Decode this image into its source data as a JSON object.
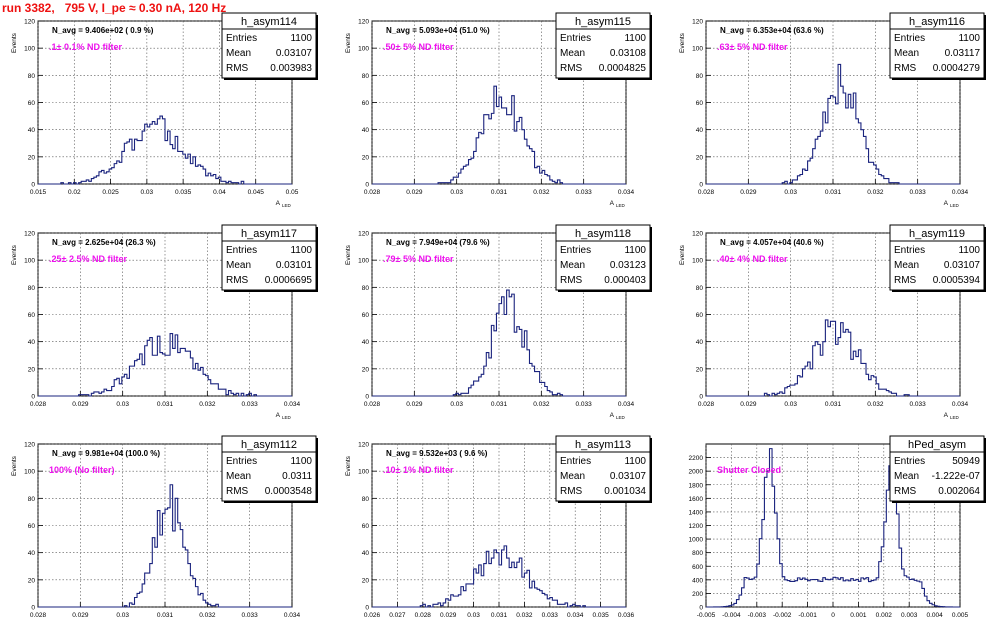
{
  "page": {
    "title": "run 3382,   795 V, I_pe ≈ 0.30 nA, 120 Hz"
  },
  "colors": {
    "title": "#ee1111",
    "annotation": "#ee11ee",
    "histogram": "#1a237e"
  },
  "stats_labels": {
    "entries": "Entries",
    "mean": "Mean",
    "rms": "RMS"
  },
  "chart_data": [
    {
      "type": "histogram",
      "name": "h_asym114",
      "title": "N_avg = 9.406e+02 ( 0.9 %)",
      "annotation": ".1± 0.1% ND filter",
      "xlabel": "A",
      "xsub": "LED",
      "ylabel": "Events",
      "xlim": [
        0.015,
        0.05
      ],
      "ylim": [
        0,
        120
      ],
      "xticks": [
        0.015,
        0.02,
        0.025,
        0.03,
        0.035,
        0.04,
        0.045,
        0.05
      ],
      "yticks": [
        0,
        20,
        40,
        60,
        80,
        100,
        120
      ],
      "grid": true,
      "stats": {
        "entries": "1100",
        "mean": "0.03107",
        "rms": "0.003983"
      },
      "dist": {
        "mu": 0.03107,
        "sigma": 0.003983,
        "peak": 50
      }
    },
    {
      "type": "histogram",
      "name": "h_asym115",
      "title": "N_avg = 5.093e+04 (51.0 %)",
      "annotation": ".50± 5% ND filter",
      "xlabel": "A",
      "xsub": "LED",
      "ylabel": "Events",
      "xlim": [
        0.028,
        0.034
      ],
      "ylim": [
        0,
        120
      ],
      "xticks": [
        0.028,
        0.029,
        0.03,
        0.031,
        0.032,
        0.033,
        0.034
      ],
      "yticks": [
        0,
        20,
        40,
        60,
        80,
        100,
        120
      ],
      "grid": true,
      "stats": {
        "entries": "1100",
        "mean": "0.03108",
        "rms": "0.0004825"
      },
      "dist": {
        "mu": 0.03108,
        "sigma": 0.0004825,
        "peak": 72
      }
    },
    {
      "type": "histogram",
      "name": "h_asym116",
      "title": "N_avg = 6.353e+04 (63.6 %)",
      "annotation": ".63± 5% ND filter",
      "xlabel": "A",
      "xsub": "LED",
      "ylabel": "Events",
      "xlim": [
        0.028,
        0.034
      ],
      "ylim": [
        0,
        120
      ],
      "xticks": [
        0.028,
        0.029,
        0.03,
        0.031,
        0.032,
        0.033,
        0.034
      ],
      "yticks": [
        0,
        20,
        40,
        60,
        80,
        100,
        120
      ],
      "grid": true,
      "stats": {
        "entries": "1100",
        "mean": "0.03117",
        "rms": "0.0004279"
      },
      "dist": {
        "mu": 0.03117,
        "sigma": 0.0004279,
        "peak": 88
      }
    },
    {
      "type": "histogram",
      "name": "h_asym117",
      "title": "N_avg = 2.625e+04 (26.3 %)",
      "annotation": ".25± 2.5% ND filter",
      "xlabel": "A",
      "xsub": "LED",
      "ylabel": "Events",
      "xlim": [
        0.028,
        0.034
      ],
      "ylim": [
        0,
        120
      ],
      "xticks": [
        0.028,
        0.029,
        0.03,
        0.031,
        0.032,
        0.033,
        0.034
      ],
      "yticks": [
        0,
        20,
        40,
        60,
        80,
        100,
        120
      ],
      "grid": true,
      "stats": {
        "entries": "1100",
        "mean": "0.03101",
        "rms": "0.0006695"
      },
      "dist": {
        "mu": 0.03101,
        "sigma": 0.0006695,
        "peak": 46
      }
    },
    {
      "type": "histogram",
      "name": "h_asym118",
      "title": "N_avg = 7.949e+04 (79.6 %)",
      "annotation": ".79± 5% ND filter",
      "xlabel": "A",
      "xsub": "LED",
      "ylabel": "Events",
      "xlim": [
        0.028,
        0.034
      ],
      "ylim": [
        0,
        120
      ],
      "xticks": [
        0.028,
        0.029,
        0.03,
        0.031,
        0.032,
        0.033,
        0.034
      ],
      "yticks": [
        0,
        20,
        40,
        60,
        80,
        100,
        120
      ],
      "grid": true,
      "stats": {
        "entries": "1100",
        "mean": "0.03123",
        "rms": "0.000403"
      },
      "dist": {
        "mu": 0.03123,
        "sigma": 0.000403,
        "peak": 78
      }
    },
    {
      "type": "histogram",
      "name": "h_asym119",
      "title": "N_avg = 4.057e+04 (40.6 %)",
      "annotation": ".40± 4% ND filter",
      "xlabel": "A",
      "xsub": "LED",
      "ylabel": "Events",
      "xlim": [
        0.028,
        0.034
      ],
      "ylim": [
        0,
        120
      ],
      "xticks": [
        0.028,
        0.029,
        0.03,
        0.031,
        0.032,
        0.033,
        0.034
      ],
      "yticks": [
        0,
        20,
        40,
        60,
        80,
        100,
        120
      ],
      "grid": true,
      "stats": {
        "entries": "1100",
        "mean": "0.03107",
        "rms": "0.0005394"
      },
      "dist": {
        "mu": 0.03107,
        "sigma": 0.0005394,
        "peak": 56
      }
    },
    {
      "type": "histogram",
      "name": "h_asym112",
      "title": "N_avg = 9.981e+04 (100.0 %)",
      "annotation": "100% (No filter)",
      "xlabel": "A",
      "xsub": "LED",
      "ylabel": "Events",
      "xlim": [
        0.028,
        0.034
      ],
      "ylim": [
        0,
        120
      ],
      "xticks": [
        0.028,
        0.029,
        0.03,
        0.031,
        0.032,
        0.033,
        0.034
      ],
      "yticks": [
        0,
        20,
        40,
        60,
        80,
        100,
        120
      ],
      "grid": true,
      "stats": {
        "entries": "1100",
        "mean": "0.0311",
        "rms": "0.0003548"
      },
      "dist": {
        "mu": 0.0311,
        "sigma": 0.0003548,
        "peak": 90
      }
    },
    {
      "type": "histogram",
      "name": "h_asym113",
      "title": "N_avg = 9.532e+03 ( 9.6 %)",
      "annotation": ".10± 1% ND filter",
      "xlabel": "A",
      "xsub": "LED",
      "ylabel": "Events",
      "xlim": [
        0.026,
        0.036
      ],
      "ylim": [
        0,
        120
      ],
      "xticks": [
        0.026,
        0.027,
        0.028,
        0.029,
        0.03,
        0.031,
        0.032,
        0.033,
        0.034,
        0.035,
        0.036
      ],
      "yticks": [
        0,
        20,
        40,
        60,
        80,
        100,
        120
      ],
      "grid": true,
      "stats": {
        "entries": "1100",
        "mean": "0.03107",
        "rms": "0.001034"
      },
      "dist": {
        "mu": 0.03107,
        "sigma": 0.001034,
        "peak": 45
      }
    },
    {
      "type": "histogram",
      "name": "hPed_asym",
      "title": "",
      "annotation": "Shutter Closed",
      "xlabel": "",
      "xsub": "",
      "ylabel": "",
      "xlim": [
        -0.005,
        0.005
      ],
      "ylim": [
        0,
        2400
      ],
      "xticks": [
        -0.005,
        -0.004,
        -0.003,
        -0.002,
        -0.001,
        0,
        0.001,
        0.002,
        0.003,
        0.004,
        0.005
      ],
      "yticks": [
        0,
        200,
        400,
        600,
        800,
        1000,
        1200,
        1400,
        1600,
        1800,
        2000,
        2200
      ],
      "grid": true,
      "stats": {
        "entries": "50949",
        "mean": "-1.222e-07",
        "rms": "0.002064"
      },
      "peaks": [
        {
          "x": -0.0025,
          "y": 2250
        },
        {
          "x": 0.0023,
          "y": 2100
        }
      ],
      "trough": 400
    }
  ]
}
